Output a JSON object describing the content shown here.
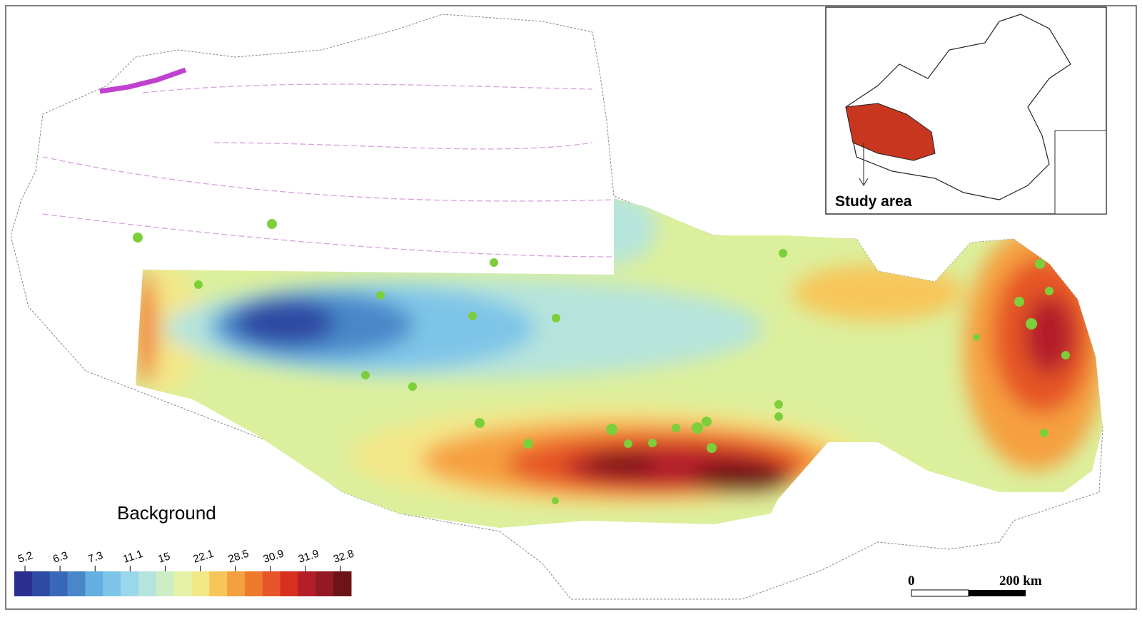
{
  "map": {
    "legend": {
      "title": "Background",
      "ticks": [
        5.2,
        6.3,
        7.3,
        11.1,
        15,
        22.1,
        28.5,
        30.9,
        31.9,
        32.8
      ],
      "colors": [
        "#2b2f8f",
        "#2e4aa3",
        "#3a68b8",
        "#4a87c9",
        "#63b0e0",
        "#7dc5e8",
        "#99d8ea",
        "#b5e4dc",
        "#cdeec2",
        "#e3f2a6",
        "#f4e788",
        "#f7c65a",
        "#f5a040",
        "#ef7a2e",
        "#e65428",
        "#d7301f",
        "#b41e2a",
        "#931a24",
        "#6e1419"
      ]
    },
    "inset": {
      "label": "Study area"
    },
    "scale_bar": {
      "start": "0",
      "end": "200 km"
    }
  }
}
